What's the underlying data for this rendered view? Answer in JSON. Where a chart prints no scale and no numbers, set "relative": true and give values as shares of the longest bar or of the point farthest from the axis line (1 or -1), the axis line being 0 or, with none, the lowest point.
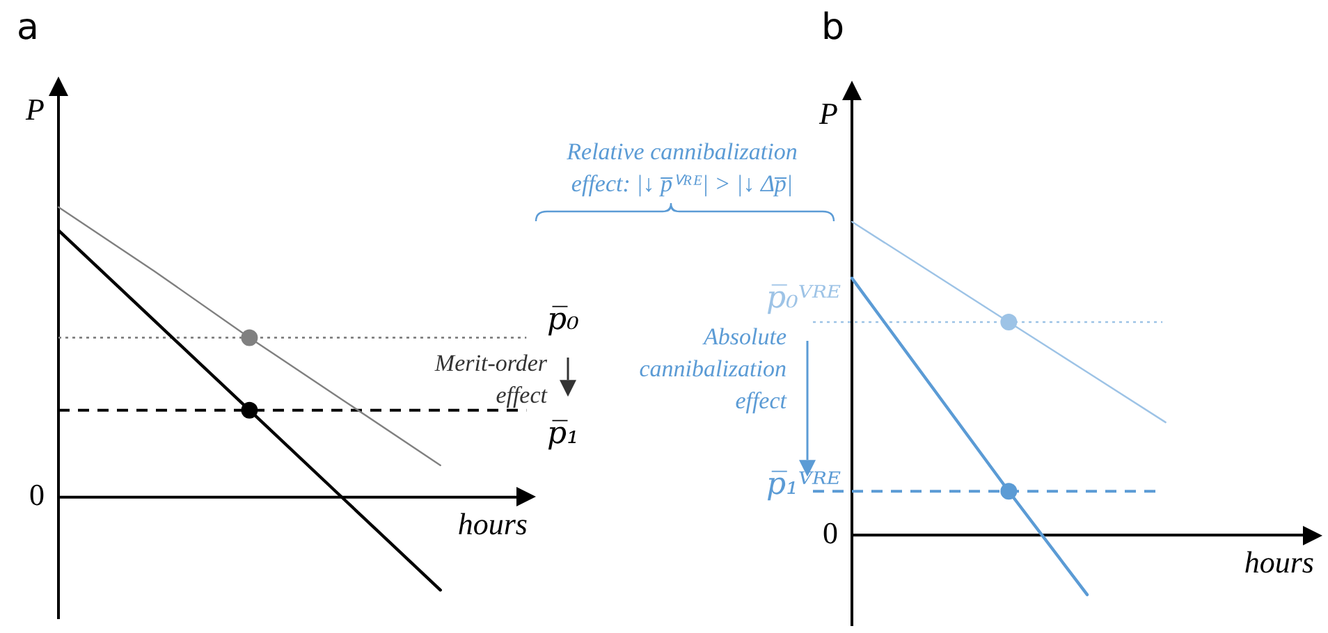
{
  "chart_data": [
    {
      "type": "line",
      "title": "a",
      "ylabel": "P",
      "xlabel": "hours",
      "relative": true,
      "legend": false,
      "categories": [
        null,
        null,
        null,
        null,
        null,
        null
      ],
      "series": [
        {
          "color": "#808080",
          "values": [
            1,
            0.78,
            0.55,
            0.33,
            0.11,
            null
          ]
        },
        {
          "color": "#000000",
          "values": [
            0.92,
            0.61,
            0.3,
            -0.01,
            -0.32,
            null
          ]
        }
      ],
      "ref_lines": [
        {
          "axis": "y",
          "value": 0.55,
          "label": "p̅₀",
          "color": "#808080",
          "line_style": "dotted"
        },
        {
          "axis": "y",
          "value": 0.3,
          "label": "p̅₁",
          "color": "#000000",
          "line_style": "dashed"
        }
      ],
      "annotations": [
        "0",
        "Merit-order effect"
      ]
    },
    {
      "type": "line",
      "title": "b",
      "ylabel": "P",
      "xlabel": "hours",
      "relative": true,
      "legend": false,
      "categories": [
        null,
        null,
        null,
        null,
        null,
        null,
        null
      ],
      "series": [
        {
          "color": "#9dc3e6",
          "values": [
            1,
            0.84,
            0.68,
            0.52,
            0.36,
            null,
            null
          ]
        },
        {
          "color": "#5b9bd5",
          "values": [
            0.82,
            0.48,
            0.14,
            -0.19,
            null,
            null,
            null
          ]
        }
      ],
      "ref_lines": [
        {
          "axis": "y",
          "value": 0.68,
          "label": "p̅₀ⱽᴿᴱ",
          "color": "#9dc3e6",
          "line_style": "dotted"
        },
        {
          "axis": "y",
          "value": 0.14,
          "label": "p̅₁ⱽᴿᴱ",
          "color": "#5b9bd5",
          "line_style": "dashed"
        }
      ],
      "annotations": [
        "0",
        "Relative cannibalization effect: |↓ p̅ⱽᴿᴱ| > |↓ Δp̅|",
        "Absolute cannibalization effect"
      ]
    }
  ]
}
